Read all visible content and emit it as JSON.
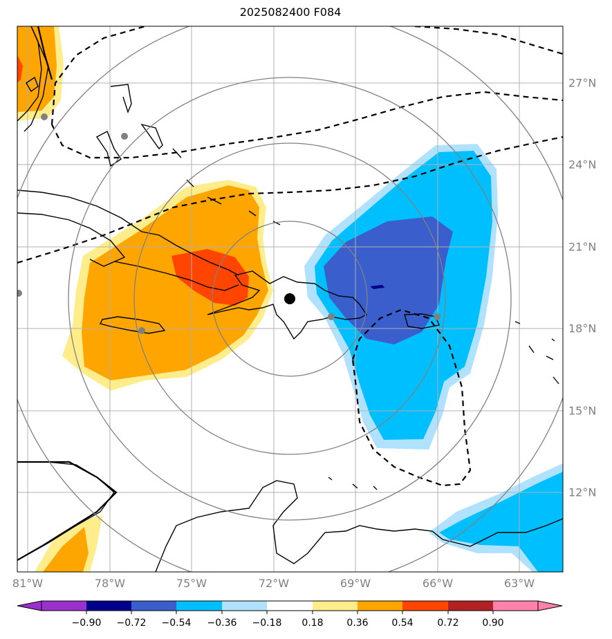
{
  "title": "2025082400 F084",
  "center_marker": "storm-center-dot",
  "map": {
    "lon_ticks": [
      "81°W",
      "78°W",
      "75°W",
      "72°W",
      "69°W",
      "66°W",
      "63°W"
    ],
    "lat_ticks": [
      "27°N",
      "24°N",
      "21°N",
      "18°N",
      "15°N",
      "12°N"
    ]
  },
  "colorbar": {
    "ticks": [
      "−0.90",
      "−0.72",
      "−0.54",
      "−0.36",
      "−0.18",
      "0.18",
      "0.36",
      "0.54",
      "0.72",
      "0.90"
    ],
    "colors": [
      "#9932cc",
      "#00008b",
      "#3a5fcd",
      "#00bfff",
      "#b0e2ff",
      "#ffffff",
      "#ffec8b",
      "#ffa500",
      "#ff4500",
      "#b22222",
      "#ff82ab"
    ]
  },
  "colors": {
    "land_outline": "#000000",
    "range_rings": "#808080",
    "gridlines": "#b0b0b0"
  }
}
